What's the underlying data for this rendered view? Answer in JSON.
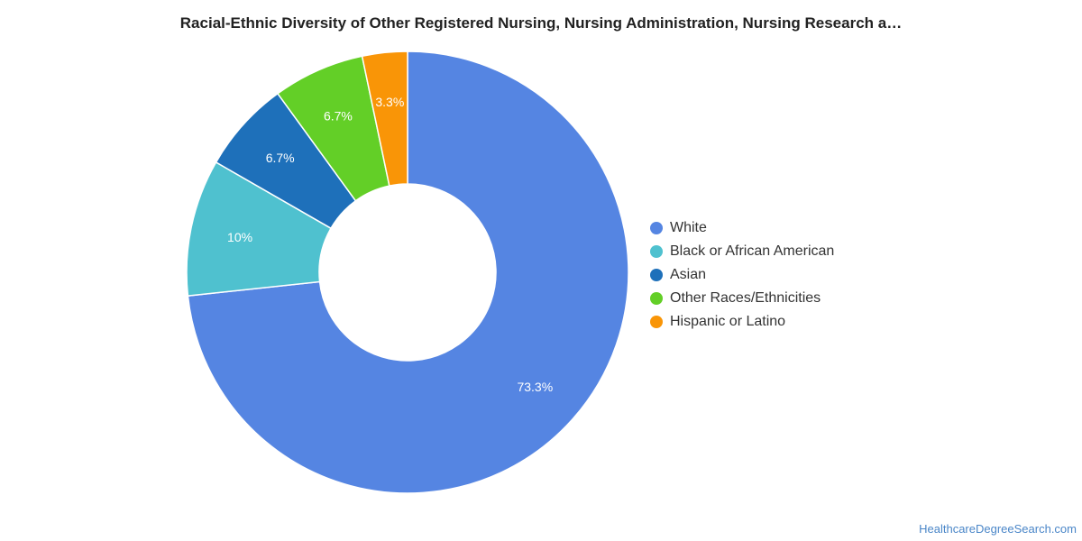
{
  "chart_data": {
    "type": "pie",
    "title": "Racial-Ethnic Diversity of Other Registered Nursing, Nursing Administration, Nursing Research a…",
    "donut": true,
    "categories": [
      "White",
      "Black or African American",
      "Asian",
      "Other Races/Ethnicities",
      "Hispanic or Latino"
    ],
    "values": [
      73.3,
      10,
      6.7,
      6.7,
      3.3
    ],
    "data_labels": [
      "73.3%",
      "10%",
      "6.7%",
      "6.7%",
      "3.3%"
    ],
    "colors": [
      "#5585e2",
      "#4fc1cf",
      "#1e70ba",
      "#63cf27",
      "#f99507"
    ],
    "legend_position": "right"
  },
  "watermark": "HealthcareDegreeSearch.com"
}
